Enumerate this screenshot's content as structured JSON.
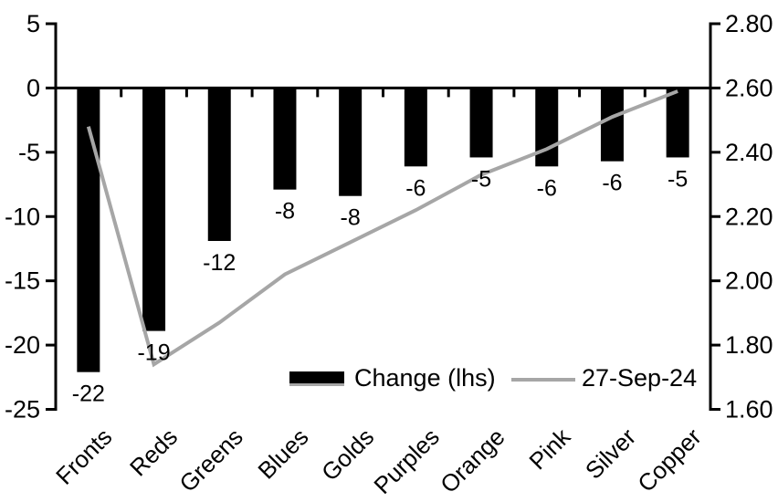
{
  "chart_data": {
    "type": "bar",
    "subtype": "dual-axis-bar-line-combo",
    "title": "",
    "xlabel": "",
    "ylabel": "",
    "grid": false,
    "background": "#ffffff",
    "categories": [
      "Fronts",
      "Reds",
      "Greens",
      "Blues",
      "Golds",
      "Purples",
      "Orange",
      "Pink",
      "Silver",
      "Copper"
    ],
    "series": [
      {
        "name": "Change (lhs)",
        "type": "bar",
        "axis": "left",
        "color": "#000000",
        "values": [
          -22,
          -19,
          -12,
          -8,
          -8,
          -6,
          -5,
          -6,
          -6,
          -5
        ],
        "plot_values": [
          -22.1,
          -18.9,
          -11.9,
          -7.9,
          -8.4,
          -6.1,
          -5.4,
          -6.1,
          -5.7,
          -5.4
        ],
        "data_labels": [
          "-22",
          "-19",
          "-12",
          "-8",
          "-8",
          "-6",
          "-5",
          "-6",
          "-6",
          "-5"
        ]
      },
      {
        "name": "27-Sep-24",
        "type": "line",
        "axis": "right",
        "color": "#a6a6a6",
        "values": [
          2.48,
          1.74,
          1.87,
          2.02,
          2.12,
          2.22,
          2.33,
          2.41,
          2.51,
          2.59
        ]
      }
    ],
    "left_axis": {
      "min": -25,
      "max": 5,
      "tick_labels": [
        "5",
        "0",
        "-5",
        "-10",
        "-15",
        "-20",
        "-25"
      ]
    },
    "right_axis": {
      "min": 1.6,
      "max": 2.8,
      "tick_labels": [
        "2.80",
        "2.60",
        "2.40",
        "2.20",
        "2.00",
        "1.80",
        "1.60"
      ]
    },
    "legend": {
      "position": "bottom-center-inside",
      "entries": [
        "Change (lhs)",
        "27-Sep-24"
      ]
    }
  }
}
